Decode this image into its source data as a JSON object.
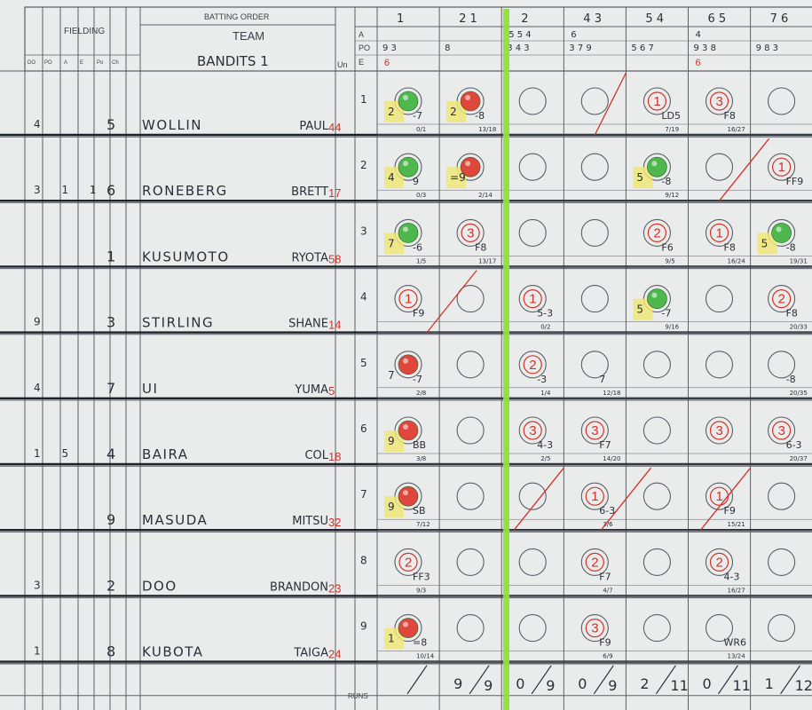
{
  "header": {
    "fielding_label": "FIELDING",
    "batting_order_label": "BATTING ORDER",
    "team_label": "TEAM",
    "team_name": "BANDITS  1",
    "un_label": "Un",
    "col_labels": [
      "DO",
      "PO",
      "A",
      "E",
      "Po",
      "Ch"
    ],
    "ape_labels": [
      "A",
      "PO",
      "E"
    ],
    "inning_headers": [
      "1",
      "2 1",
      "2",
      "4 3",
      "5 4",
      "6 5",
      "7 6"
    ],
    "a_row": [
      "",
      "",
      "5 5 4",
      "6",
      "",
      "4",
      ""
    ],
    "po_row": [
      "9 3",
      "8",
      "3 4 3",
      "3 7 9",
      "5 6 7",
      "9 3 8",
      "9 8 3"
    ],
    "e_row": [
      "6",
      "",
      "",
      "",
      "",
      "6",
      ""
    ]
  },
  "players": [
    {
      "order": "1",
      "pos": "5",
      "name": "WOLLIN",
      "first": "PAUL",
      "num": "44",
      "fielding": "4"
    },
    {
      "order": "2",
      "pos": "6",
      "name": "RONEBERG",
      "first": "BRETT",
      "num": "17",
      "fielding": "3 1 1"
    },
    {
      "order": "3",
      "pos": "1",
      "name": "KUSUMOTO",
      "first": "RYOTA",
      "num": "58",
      "fielding": ""
    },
    {
      "order": "4",
      "pos": "3",
      "name": "STIRLING",
      "first": "SHANE",
      "num": "14",
      "fielding": "9"
    },
    {
      "order": "5",
      "pos": "7",
      "name": "UI",
      "first": "YUMA",
      "num": "5",
      "fielding": "4"
    },
    {
      "order": "6",
      "pos": "4",
      "name": "BAIRA",
      "first": "COL",
      "num": "18",
      "fielding": "1 5"
    },
    {
      "order": "7",
      "pos": "9",
      "name": "MASUDA",
      "first": "MITSU",
      "num": "32",
      "fielding": ""
    },
    {
      "order": "8",
      "pos": "2",
      "name": "DOO",
      "first": "BRANDON",
      "num": "23",
      "fielding": "3"
    },
    {
      "order": "9",
      "pos": "8",
      "name": "KUBOTA",
      "first": "TAIGA",
      "num": "24",
      "fielding": "1"
    }
  ],
  "cells": [
    {
      "r": 0,
      "c": 0,
      "ball": "green",
      "hi": true,
      "num": "2",
      "note": "-7",
      "ct": "0/1"
    },
    {
      "r": 0,
      "c": 1,
      "ball": "red",
      "hi": true,
      "num": "2",
      "note": "-8",
      "ct": "13/18"
    },
    {
      "r": 0,
      "c": 4,
      "circled": "1",
      "note": "LD5",
      "ct": "7/19"
    },
    {
      "r": 0,
      "c": 5,
      "circled": "3",
      "note": "F8",
      "ct": "16/27"
    },
    {
      "r": 1,
      "c": 0,
      "ball": "green",
      "hi": true,
      "num": "4",
      "note": "9",
      "ct": "0/3"
    },
    {
      "r": 1,
      "c": 1,
      "ball": "red",
      "hi": true,
      "num": "=9",
      "note": "",
      "ct": "2/14"
    },
    {
      "r": 1,
      "c": 4,
      "ball": "green",
      "hi": true,
      "num": "5",
      "note": "-8",
      "ct": "9/12"
    },
    {
      "r": 1,
      "c": 6,
      "circled": "1",
      "note": "FF9",
      "ct": ""
    },
    {
      "r": 2,
      "c": 0,
      "ball": "green",
      "hi": true,
      "num": "7",
      "note": "-6",
      "ct": "1/5"
    },
    {
      "r": 2,
      "c": 1,
      "circled": "3",
      "note": "F8",
      "ct": "13/17"
    },
    {
      "r": 2,
      "c": 4,
      "circled": "2",
      "note": "F6",
      "ct": "9/5"
    },
    {
      "r": 2,
      "c": 5,
      "circled": "1",
      "note": "F8",
      "ct": "16/24"
    },
    {
      "r": 2,
      "c": 6,
      "ball": "green",
      "hi": true,
      "num": "5",
      "note": "-8",
      "ct": "19/31"
    },
    {
      "r": 3,
      "c": 0,
      "circled": "1",
      "note": "F9",
      "ct": ""
    },
    {
      "r": 3,
      "c": 2,
      "circled": "1",
      "note": "5-3",
      "ct": "0/2"
    },
    {
      "r": 3,
      "c": 4,
      "ball": "green",
      "hi": true,
      "num": "5",
      "note": "-7",
      "ct": "9/16"
    },
    {
      "r": 3,
      "c": 6,
      "circled": "2",
      "note": "F8",
      "ct": "20/33"
    },
    {
      "r": 4,
      "c": 0,
      "ball": "red",
      "hi": false,
      "num": "7",
      "note": "-7",
      "ct": "2/8"
    },
    {
      "r": 4,
      "c": 2,
      "circled": "2",
      "note": "-3",
      "ct": "1/4"
    },
    {
      "r": 4,
      "c": 3,
      "circled": "",
      "note": "7",
      "ct": "12/18"
    },
    {
      "r": 4,
      "c": 6,
      "circled": "",
      "note": "-8",
      "ct": "20/35"
    },
    {
      "r": 5,
      "c": 0,
      "ball": "red",
      "hi": true,
      "num": "9",
      "note": "BB",
      "ct": "3/8"
    },
    {
      "r": 5,
      "c": 2,
      "circled": "3",
      "note": "4-3",
      "ct": "2/5"
    },
    {
      "r": 5,
      "c": 3,
      "circled": "3",
      "note": "F7",
      "ct": "14/20"
    },
    {
      "r": 5,
      "c": 5,
      "circled": "3",
      "note": "",
      "ct": ""
    },
    {
      "r": 5,
      "c": 6,
      "circled": "3",
      "note": "6-3",
      "ct": "20/37"
    },
    {
      "r": 6,
      "c": 0,
      "ball": "red",
      "hi": true,
      "num": "9",
      "note": "SB",
      "ct": "7/12"
    },
    {
      "r": 6,
      "c": 3,
      "circled": "1",
      "note": "6-3",
      "ct": "3/6"
    },
    {
      "r": 6,
      "c": 5,
      "circled": "1",
      "note": "F9",
      "ct": "15/21"
    },
    {
      "r": 7,
      "c": 0,
      "circled": "2",
      "note": "FF3",
      "ct": "9/3"
    },
    {
      "r": 7,
      "c": 3,
      "circled": "2",
      "note": "F7",
      "ct": "4/7"
    },
    {
      "r": 7,
      "c": 5,
      "circled": "2",
      "note": "4-3",
      "ct": "16/27"
    },
    {
      "r": 8,
      "c": 0,
      "ball": "red",
      "hi": true,
      "num": "1",
      "note": "=8",
      "ct": "10/14"
    },
    {
      "r": 8,
      "c": 3,
      "circled": "3",
      "note": "F9",
      "ct": "6/9"
    },
    {
      "r": 8,
      "c": 5,
      "circled": "",
      "note": "WR6",
      "ct": "13/24"
    }
  ],
  "runs_label": "RUNS",
  "runs": [
    {
      "r": "",
      "t": ""
    },
    {
      "r": "9",
      "t": "9"
    },
    {
      "r": "0",
      "t": "9"
    },
    {
      "r": "0",
      "t": "9"
    },
    {
      "r": "2",
      "t": "11"
    },
    {
      "r": "0",
      "t": "11"
    },
    {
      "r": "1",
      "t": "12"
    }
  ],
  "colors": {
    "paper": "#e9eceb",
    "grid": "#5a5f68",
    "ink": "#2b2f3a",
    "red_ink": "#d3312a",
    "highlighter_green": "#8ee03a",
    "highlighter_yellow": "#efe77a",
    "ball_green": "#4eb84e",
    "ball_red": "#e0473c"
  }
}
